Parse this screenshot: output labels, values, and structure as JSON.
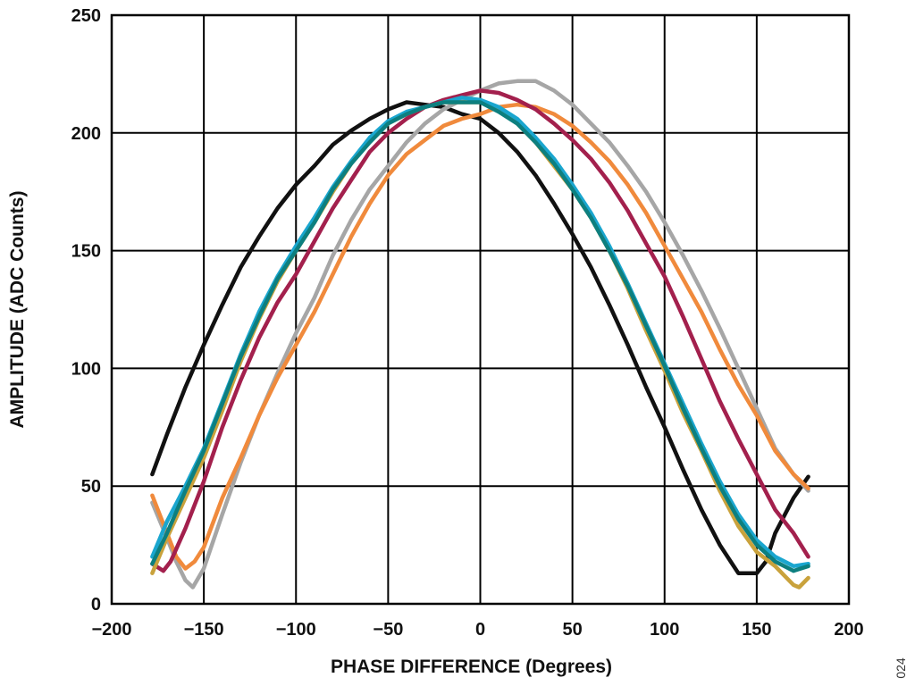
{
  "chart_data": {
    "type": "line",
    "title": "",
    "xlabel": "PHASE DIFFERENCE (Degrees)",
    "ylabel": "AMPLITUDE (ADC Counts)",
    "xlim": [
      -200,
      200
    ],
    "ylim": [
      0,
      250
    ],
    "xticks": [
      -200,
      -150,
      -100,
      -50,
      0,
      50,
      100,
      150,
      200
    ],
    "yticks": [
      0,
      50,
      100,
      150,
      200,
      250
    ],
    "xtick_labels": [
      "−200",
      "−150",
      "−100",
      "−50",
      "0",
      "50",
      "100",
      "150",
      "200"
    ],
    "ytick_labels": [
      "0",
      "50",
      "100",
      "150",
      "200",
      "250"
    ],
    "grid": true,
    "legend": "none",
    "figure_id": "024",
    "series": [
      {
        "name": "black",
        "color": "#111111",
        "x": [
          -178,
          -170,
          -160,
          -150,
          -140,
          -130,
          -120,
          -110,
          -100,
          -90,
          -80,
          -70,
          -60,
          -50,
          -40,
          -30,
          -20,
          -10,
          0,
          10,
          20,
          30,
          40,
          50,
          60,
          70,
          80,
          90,
          100,
          110,
          120,
          130,
          140,
          150,
          155,
          160,
          170,
          178
        ],
        "y": [
          55,
          72,
          92,
          110,
          127,
          143,
          156,
          168,
          178,
          186,
          195,
          201,
          206,
          210,
          213,
          212,
          211,
          208,
          206,
          200,
          192,
          182,
          170,
          157,
          143,
          127,
          110,
          92,
          75,
          57,
          40,
          25,
          13,
          13,
          18,
          30,
          45,
          54
        ]
      },
      {
        "name": "gray",
        "color": "#a6a6a6",
        "x": [
          -178,
          -170,
          -165,
          -160,
          -156,
          -150,
          -140,
          -130,
          -120,
          -110,
          -100,
          -90,
          -80,
          -70,
          -60,
          -50,
          -40,
          -30,
          -20,
          -10,
          0,
          10,
          20,
          30,
          40,
          50,
          60,
          70,
          80,
          90,
          100,
          110,
          120,
          130,
          140,
          150,
          160,
          170,
          178
        ],
        "y": [
          43,
          28,
          18,
          10,
          7,
          15,
          38,
          60,
          80,
          98,
          115,
          130,
          148,
          163,
          176,
          186,
          196,
          204,
          210,
          214,
          218,
          221,
          222,
          222,
          218,
          212,
          204,
          196,
          186,
          175,
          162,
          148,
          133,
          117,
          100,
          83,
          66,
          55,
          48
        ]
      },
      {
        "name": "orange",
        "color": "#f08a3c",
        "x": [
          -178,
          -170,
          -165,
          -160,
          -155,
          -150,
          -140,
          -130,
          -120,
          -110,
          -100,
          -90,
          -80,
          -70,
          -60,
          -50,
          -40,
          -30,
          -20,
          -10,
          0,
          10,
          20,
          30,
          40,
          50,
          60,
          70,
          80,
          90,
          100,
          110,
          120,
          130,
          140,
          150,
          160,
          170,
          178
        ],
        "y": [
          46,
          30,
          20,
          15,
          18,
          24,
          45,
          62,
          80,
          96,
          110,
          124,
          140,
          156,
          170,
          182,
          191,
          197,
          203,
          206,
          208,
          211,
          212,
          211,
          208,
          203,
          196,
          188,
          178,
          166,
          152,
          138,
          124,
          108,
          93,
          80,
          65,
          55,
          49
        ]
      },
      {
        "name": "maroon",
        "color": "#a3204d",
        "x": [
          -178,
          -172,
          -168,
          -160,
          -150,
          -140,
          -130,
          -120,
          -110,
          -100,
          -90,
          -80,
          -70,
          -60,
          -50,
          -40,
          -30,
          -20,
          -10,
          0,
          10,
          20,
          30,
          40,
          50,
          60,
          70,
          80,
          90,
          100,
          110,
          120,
          130,
          140,
          150,
          160,
          170,
          178
        ],
        "y": [
          17,
          14,
          18,
          32,
          52,
          75,
          95,
          113,
          128,
          140,
          154,
          168,
          180,
          192,
          200,
          206,
          211,
          214,
          216,
          218,
          217,
          214,
          210,
          204,
          197,
          189,
          179,
          167,
          153,
          139,
          122,
          104,
          86,
          70,
          55,
          40,
          30,
          20
        ]
      },
      {
        "name": "olive",
        "color": "#c9a23c",
        "x": [
          -178,
          -170,
          -160,
          -150,
          -140,
          -130,
          -120,
          -110,
          -100,
          -90,
          -80,
          -70,
          -60,
          -50,
          -40,
          -30,
          -20,
          -10,
          0,
          10,
          20,
          30,
          40,
          50,
          60,
          70,
          80,
          90,
          100,
          110,
          120,
          130,
          140,
          150,
          160,
          165,
          170,
          173,
          178
        ],
        "y": [
          13,
          28,
          45,
          62,
          82,
          103,
          121,
          137,
          150,
          162,
          175,
          187,
          197,
          204,
          208,
          211,
          213,
          213,
          213,
          210,
          204,
          196,
          186,
          176,
          164,
          150,
          134,
          116,
          99,
          81,
          65,
          48,
          33,
          22,
          16,
          12,
          8,
          7,
          11
        ]
      },
      {
        "name": "cyan",
        "color": "#1aa6cf",
        "x": [
          -178,
          -170,
          -160,
          -150,
          -140,
          -130,
          -120,
          -110,
          -100,
          -90,
          -80,
          -70,
          -60,
          -50,
          -40,
          -30,
          -20,
          -10,
          0,
          10,
          20,
          30,
          40,
          50,
          60,
          70,
          80,
          90,
          100,
          110,
          120,
          130,
          140,
          150,
          160,
          170,
          178
        ],
        "y": [
          20,
          35,
          50,
          66,
          86,
          106,
          124,
          139,
          152,
          164,
          177,
          188,
          198,
          205,
          209,
          211,
          213,
          215,
          214,
          211,
          206,
          198,
          189,
          178,
          166,
          152,
          136,
          119,
          102,
          85,
          68,
          52,
          38,
          27,
          20,
          16,
          17
        ]
      },
      {
        "name": "teal",
        "color": "#0d7f7f",
        "x": [
          -178,
          -170,
          -160,
          -150,
          -140,
          -130,
          -120,
          -110,
          -100,
          -90,
          -80,
          -70,
          -60,
          -50,
          -40,
          -30,
          -20,
          -10,
          0,
          10,
          20,
          30,
          40,
          50,
          60,
          70,
          80,
          90,
          100,
          110,
          120,
          130,
          140,
          150,
          160,
          170,
          178
        ],
        "y": [
          17,
          30,
          48,
          65,
          85,
          105,
          122,
          138,
          150,
          162,
          176,
          187,
          196,
          204,
          208,
          211,
          213,
          213,
          213,
          209,
          204,
          196,
          187,
          176,
          164,
          150,
          135,
          118,
          101,
          83,
          66,
          50,
          36,
          25,
          18,
          14,
          16
        ]
      }
    ]
  }
}
